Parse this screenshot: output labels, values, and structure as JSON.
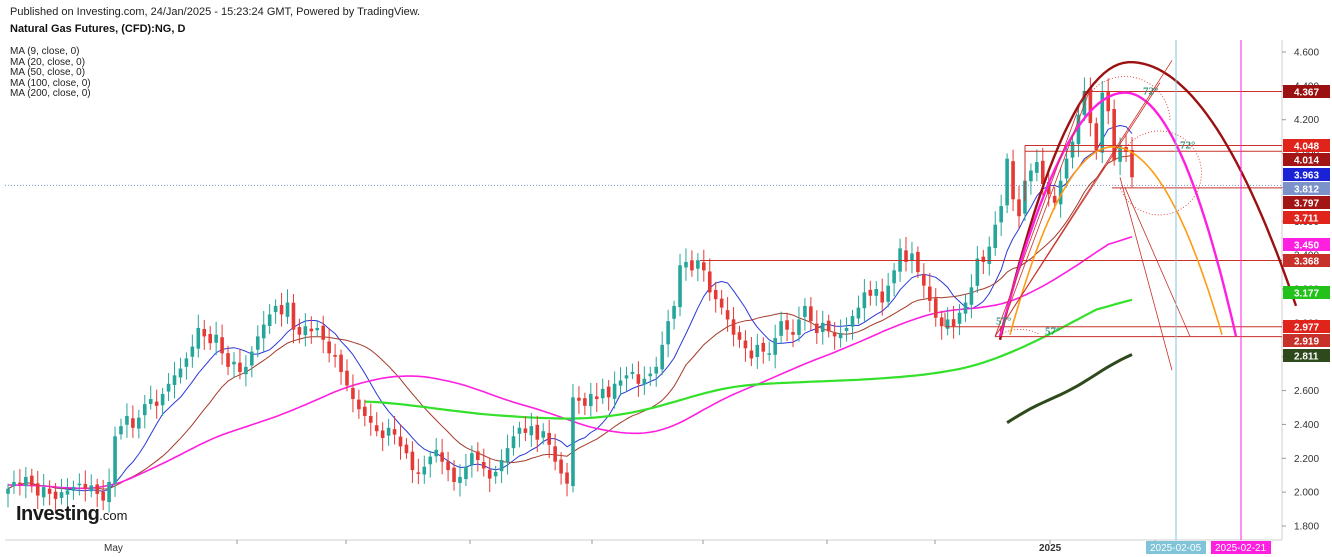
{
  "header": {
    "published": "Published on Investing.com, 24/Jan/2025 - 15:23:24 GMT, Powered by TradingView."
  },
  "title": "Natural Gas Futures, (CFD):NG, D",
  "indicators": [
    "MA (9, close, 0)",
    "MA (20, close, 0)",
    "MA (50, close, 0)",
    "MA (100, close, 0)",
    "MA (200, close, 0)"
  ],
  "logo": {
    "main": "Investing",
    "domain": ".com"
  },
  "colors": {
    "up": "#26a69a",
    "down": "#e53935",
    "ma9": "#2939d8",
    "ma20": "#a33b2a",
    "ma50": "#ff1fe0",
    "ma100": "#33e02a",
    "ma200": "#2e4a1c",
    "arc_dark": "#9b1010",
    "arc_magenta": "#ff1fe0",
    "arc_orange": "#ff9b10",
    "line_red": "#c8302a",
    "cyan_vline": "#7fc4d8",
    "magenta_vline": "#ff1fe0"
  },
  "chart_data": {
    "type": "candlestick",
    "symbol": "NG",
    "timeframe": "D",
    "ylim": [
      1.75,
      4.65
    ],
    "y_ticks": [
      "1.800",
      "2.000",
      "2.200",
      "2.400",
      "2.600",
      "2.800",
      "3.000",
      "3.200",
      "3.400",
      "3.600",
      "3.800",
      "4.000",
      "4.200",
      "4.400",
      "4.600"
    ],
    "x_labels": [
      "May",
      "2025"
    ],
    "date_markers": [
      "2025-02-05",
      "2025-02-21"
    ],
    "price_tags": [
      {
        "value": 4.367,
        "label": "4.367",
        "color": "#9b1010"
      },
      {
        "value": 4.048,
        "label": "4.048",
        "color": "#e0241c"
      },
      {
        "value": 4.014,
        "label": "4.014",
        "color": "#a31515"
      },
      {
        "value": 3.963,
        "label": "3.963",
        "color": "#1a22d6"
      },
      {
        "value": 3.812,
        "label": "3.812",
        "color": "#7b93c8"
      },
      {
        "value": 3.797,
        "label": "3.797",
        "color": "#a31515"
      },
      {
        "value": 3.711,
        "label": "3.711",
        "color": "#e0241c"
      },
      {
        "value": 3.45,
        "label": "3.450",
        "color": "#ff1fe0"
      },
      {
        "value": 3.368,
        "label": "3.368",
        "color": "#c8302a"
      },
      {
        "value": 3.177,
        "label": "3.177",
        "color": "#22c21a"
      },
      {
        "value": 2.977,
        "label": "2.977",
        "color": "#e0241c"
      },
      {
        "value": 2.919,
        "label": "2.919",
        "color": "#c8302a"
      },
      {
        "value": 2.811,
        "label": "2.811",
        "color": "#2e4a1c"
      }
    ],
    "angle_labels": [
      "72°",
      "72°",
      "57°",
      "57°"
    ],
    "close_series": [
      2.02,
      2.06,
      2.05,
      2.09,
      2.04,
      1.98,
      2.03,
      1.99,
      1.96,
      2.0,
      2.01,
      2.03,
      2.05,
      2.02,
      2.04,
      1.99,
      1.95,
      2.06,
      2.33,
      2.39,
      2.45,
      2.38,
      2.44,
      2.52,
      2.55,
      2.51,
      2.58,
      2.64,
      2.69,
      2.73,
      2.79,
      2.86,
      2.97,
      2.92,
      2.88,
      2.93,
      2.82,
      2.74,
      2.77,
      2.71,
      2.74,
      2.83,
      2.92,
      2.99,
      3.05,
      3.1,
      3.05,
      3.12,
      2.96,
      2.93,
      2.98,
      2.95,
      2.97,
      2.9,
      2.82,
      2.8,
      2.71,
      2.63,
      2.55,
      2.49,
      2.45,
      2.41,
      2.36,
      2.32,
      2.38,
      2.34,
      2.27,
      2.23,
      2.13,
      2.11,
      2.15,
      2.21,
      2.25,
      2.18,
      2.13,
      2.06,
      2.09,
      2.15,
      2.23,
      2.19,
      2.14,
      2.08,
      2.12,
      2.19,
      2.26,
      2.33,
      2.38,
      2.35,
      2.39,
      2.31,
      2.36,
      2.28,
      2.18,
      2.11,
      2.05,
      2.56,
      2.54,
      2.51,
      2.58,
      2.55,
      2.61,
      2.56,
      2.64,
      2.66,
      2.69,
      2.71,
      2.64,
      2.67,
      2.7,
      2.74,
      2.87,
      3.01,
      3.1,
      3.34,
      3.36,
      3.31,
      3.37,
      3.31,
      3.18,
      3.14,
      3.09,
      3.02,
      2.93,
      2.9,
      2.85,
      2.79,
      2.87,
      2.83,
      2.82,
      2.91,
      3.01,
      2.96,
      2.93,
      3.02,
      3.1,
      3.01,
      2.94,
      3.0,
      2.95,
      2.92,
      2.94,
      2.97,
      3.04,
      3.09,
      3.18,
      3.16,
      3.2,
      3.12,
      3.22,
      3.31,
      3.44,
      3.36,
      3.41,
      3.3,
      3.22,
      3.13,
      3.03,
      2.98,
      3.02,
      2.98,
      3.06,
      3.12,
      3.21,
      3.38,
      3.36,
      3.45,
      3.58,
      3.69,
      3.97,
      3.73,
      3.63,
      3.84,
      3.9,
      3.95,
      3.82,
      3.76,
      3.71,
      3.84,
      3.97,
      4.07,
      4.23,
      4.37,
      4.18,
      4.02,
      4.36,
      4.25,
      3.96,
      4.05,
      4.01,
      3.86
    ],
    "ma_series": [
      {
        "name": "MA (9, close, 0)",
        "period": 9
      },
      {
        "name": "MA (20, close, 0)",
        "period": 20
      },
      {
        "name": "MA (50, close, 0)",
        "period": 50
      },
      {
        "name": "MA (100, close, 0)",
        "period": 100
      },
      {
        "name": "MA (200, close, 0)",
        "period": 200
      }
    ],
    "horizontal_levels": [
      4.367,
      4.048,
      4.014,
      3.797,
      3.368,
      2.977,
      2.919
    ]
  }
}
